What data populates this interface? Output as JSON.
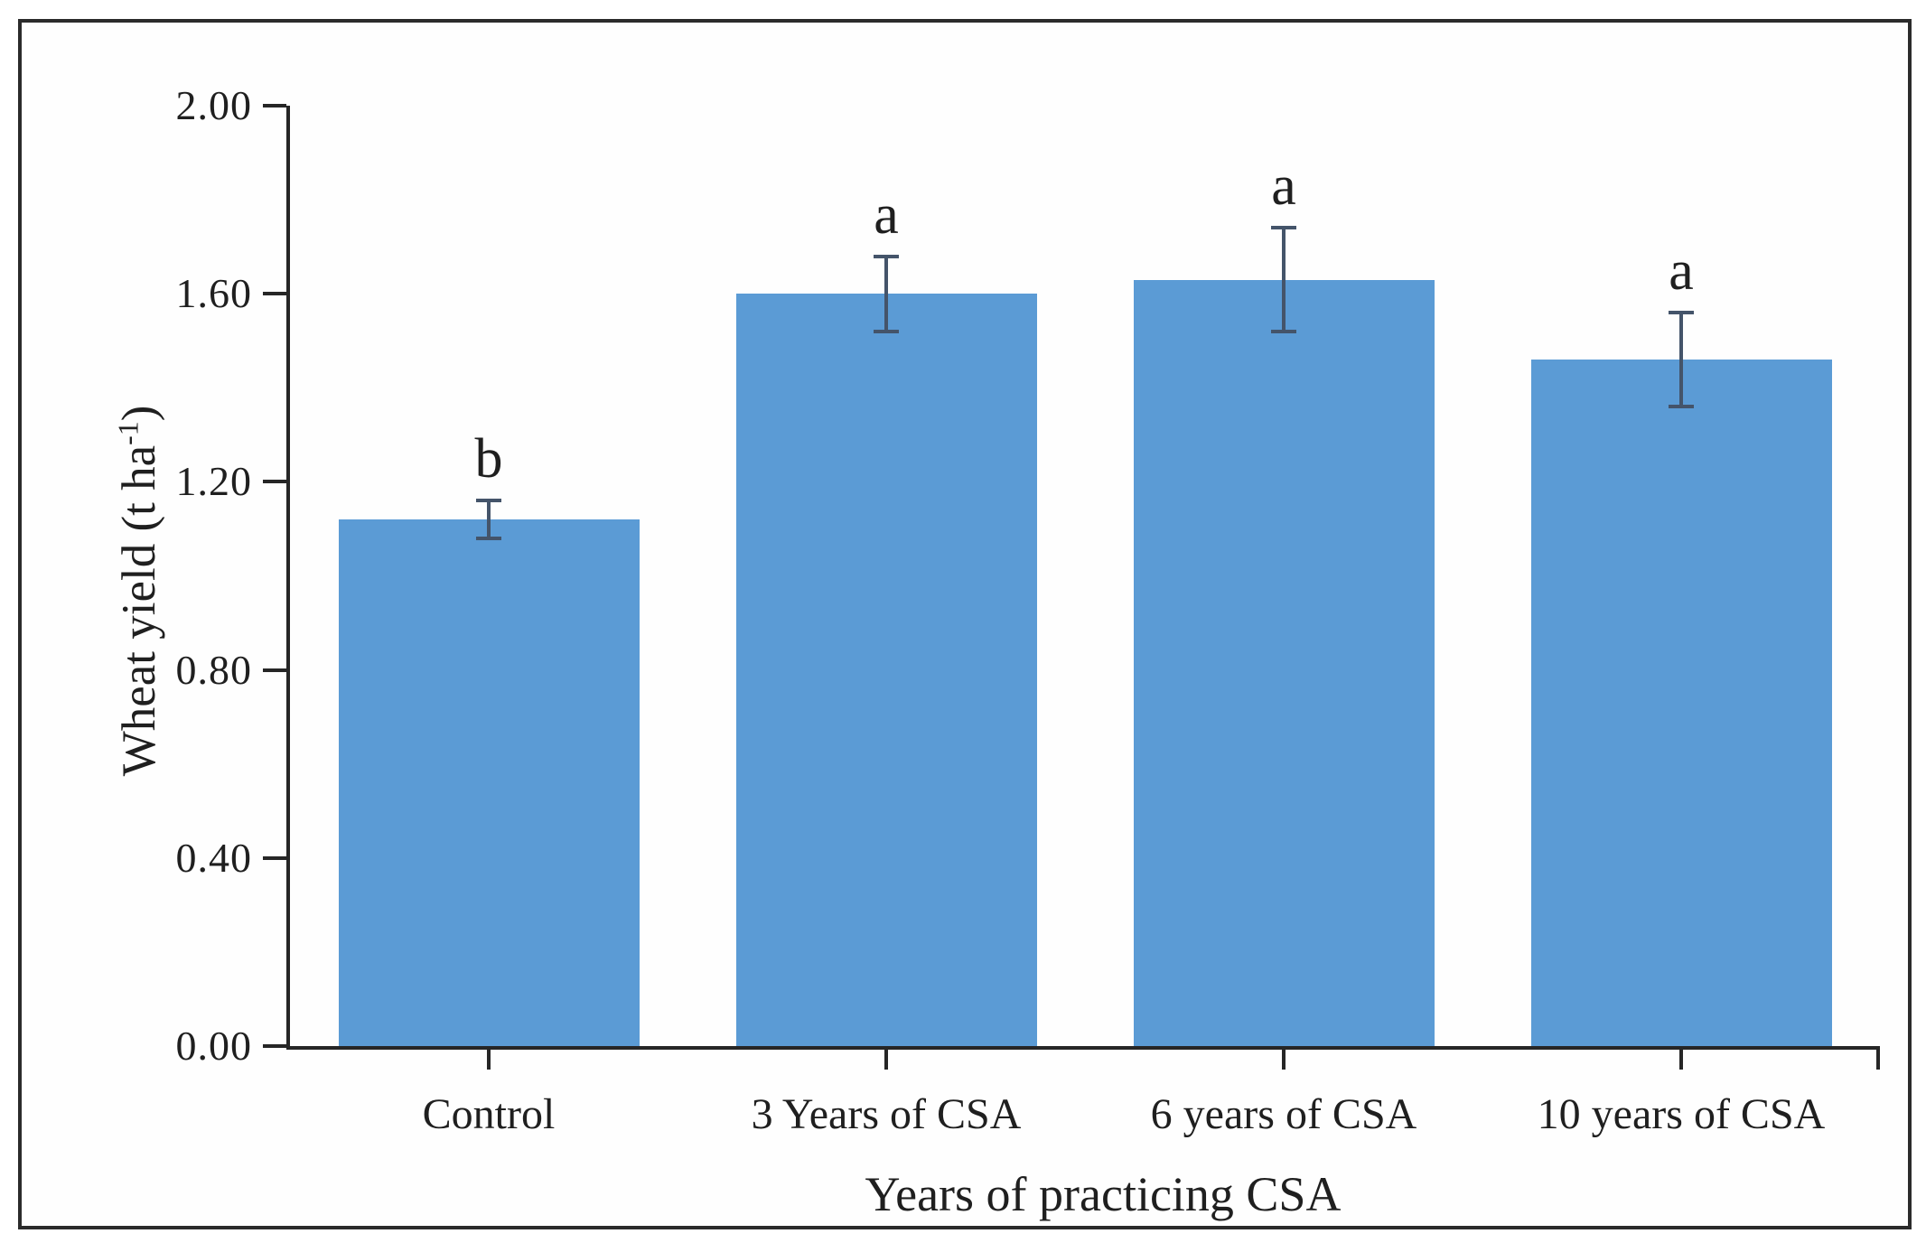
{
  "figure": {
    "border_color": "#2b2b2b",
    "background": "#fefefe"
  },
  "chart_data": {
    "type": "bar",
    "title": "",
    "xlabel": "Years of practicing CSA",
    "ylabel": "Wheat yield (t ha⁻¹)",
    "ylabel_prefix": "Wheat yield (t ha",
    "ylabel_sup": "-1",
    "ylabel_suffix": ")",
    "categories": [
      "Control",
      "3 Years of CSA",
      "6 years of CSA",
      "10 years of CSA"
    ],
    "values": [
      1.12,
      1.6,
      1.63,
      1.46
    ],
    "errors": [
      0.04,
      0.08,
      0.11,
      0.1
    ],
    "sig_letters": [
      "b",
      "a",
      "a",
      "a"
    ],
    "yticks": [
      "0.00",
      "0.40",
      "0.80",
      "1.20",
      "1.60",
      "2.00"
    ],
    "ytick_values": [
      0.0,
      0.4,
      0.8,
      1.2,
      1.6,
      2.0
    ],
    "ylim": [
      0.0,
      2.0
    ],
    "grid": "off",
    "legend": "none",
    "bar_color": "#5B9BD5",
    "error_bar_color": "#44546A",
    "axis_color": "#262626",
    "text_color": "#1f1f1f"
  }
}
